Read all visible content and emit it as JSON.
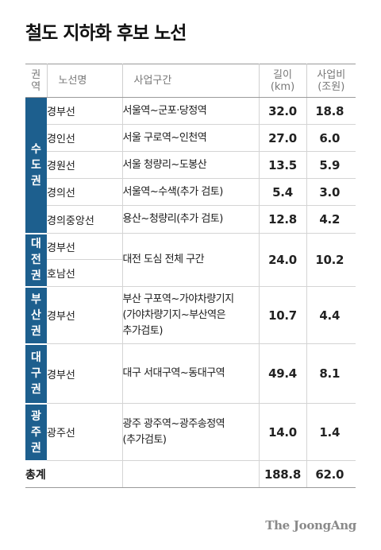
{
  "title": "철도 지하화 후보 노선",
  "header": {
    "region": "권\n역",
    "line_name": "노선명",
    "section": "사업구간",
    "length": "길이\n(km)",
    "cost": "사업비\n(조원)"
  },
  "regions": [
    {
      "label": "수\n도\n권",
      "rows": [
        {
          "line": "경부선",
          "section": "서울역~군포·당정역",
          "length": "32.0",
          "cost": "18.8"
        },
        {
          "line": "경인선",
          "section": "서울 구로역~인천역",
          "length": "27.0",
          "cost": "6.0"
        },
        {
          "line": "경원선",
          "section": "서울 청량리~도봉산",
          "length": "13.5",
          "cost": "5.9"
        },
        {
          "line": "경의선",
          "section": "서울역~수색(추가 검토)",
          "length": "5.4",
          "cost": "3.0"
        },
        {
          "line": "경의중앙선",
          "section": "용산~청량리(추가 검토)",
          "length": "12.8",
          "cost": "4.2"
        }
      ]
    },
    {
      "label": "대\n전\n권",
      "lines": [
        "경부선",
        "호남선"
      ],
      "section": "대전 도심 전체 구간",
      "length": "24.0",
      "cost": "10.2"
    },
    {
      "label": "부\n산\n권",
      "line": "경부선",
      "section": "부산 구포역~가야차량기지\n(가야차량기지~부산역은\n추가검토)",
      "length": "10.7",
      "cost": "4.4"
    },
    {
      "label": "대\n구\n권",
      "line": "경부선",
      "section": "대구 서대구역~동대구역",
      "length": "49.4",
      "cost": "8.1"
    },
    {
      "label": "광\n주\n권",
      "line": "광주선",
      "section": "광주 광주역~광주송정역\n(추가검토)",
      "length": "14.0",
      "cost": "1.4"
    }
  ],
  "total": {
    "label": "총계",
    "length": "188.8",
    "cost": "62.0"
  },
  "brand": "The JoongAng"
}
